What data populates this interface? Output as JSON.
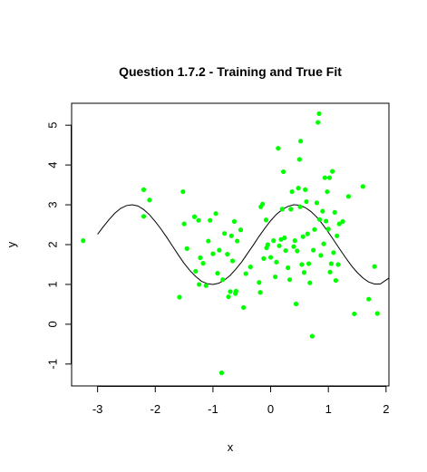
{
  "chart_data": {
    "type": "scatter",
    "title": "Question 1.7.2 - Training and True Fit",
    "xlabel": "x",
    "ylabel": "y",
    "xlim": [
      -3.45,
      2.05
    ],
    "ylim": [
      -1.55,
      5.55
    ],
    "x_ticks": [
      -3,
      -2,
      -1,
      0,
      1,
      2
    ],
    "x_tick_labels": [
      "-3",
      "-2",
      "-1",
      "0",
      "1",
      "2"
    ],
    "y_ticks": [
      -1,
      0,
      1,
      2,
      3,
      4,
      5
    ],
    "y_tick_labels": [
      "-1",
      "0",
      "1",
      "2",
      "3",
      "4",
      "5"
    ],
    "grid": false,
    "legend": "none",
    "series": [
      {
        "type": "scatter",
        "color": "#00ff00",
        "points": [
          [
            -3.25,
            2.1
          ],
          [
            -2.2,
            3.38
          ],
          [
            -2.2,
            2.71
          ],
          [
            -2.1,
            3.12
          ],
          [
            -1.58,
            0.68
          ],
          [
            -1.52,
            3.33
          ],
          [
            -1.5,
            2.52
          ],
          [
            -1.45,
            1.9
          ],
          [
            -1.32,
            2.7
          ],
          [
            -1.3,
            1.33
          ],
          [
            -1.25,
            2.61
          ],
          [
            -1.24,
            1.0
          ],
          [
            -1.22,
            1.67
          ],
          [
            -1.17,
            1.53
          ],
          [
            -1.12,
            0.97
          ],
          [
            -1.08,
            2.09
          ],
          [
            -1.05,
            2.61
          ],
          [
            -1.0,
            1.77
          ],
          [
            -0.95,
            2.78
          ],
          [
            -0.92,
            1.28
          ],
          [
            -0.89,
            1.86
          ],
          [
            -0.85,
            -1.22
          ],
          [
            -0.83,
            1.12
          ],
          [
            -0.8,
            2.28
          ],
          [
            -0.75,
            1.76
          ],
          [
            -0.73,
            0.69
          ],
          [
            -0.7,
            0.82
          ],
          [
            -0.68,
            2.22
          ],
          [
            -0.66,
            1.59
          ],
          [
            -0.63,
            2.58
          ],
          [
            -0.61,
            0.77
          ],
          [
            -0.6,
            0.83
          ],
          [
            -0.58,
            2.09
          ],
          [
            -0.52,
            2.37
          ],
          [
            -0.47,
            0.42
          ],
          [
            -0.43,
            1.27
          ],
          [
            -0.35,
            1.44
          ],
          [
            -0.2,
            1.05
          ],
          [
            -0.18,
            0.8
          ],
          [
            -0.17,
            2.95
          ],
          [
            -0.14,
            3.02
          ],
          [
            -0.12,
            1.65
          ],
          [
            -0.08,
            2.62
          ],
          [
            -0.07,
            1.92
          ],
          [
            -0.05,
            2.0
          ],
          [
            0.0,
            1.68
          ],
          [
            0.05,
            2.1
          ],
          [
            0.08,
            1.19
          ],
          [
            0.1,
            1.56
          ],
          [
            0.13,
            4.42
          ],
          [
            0.15,
            1.97
          ],
          [
            0.18,
            2.13
          ],
          [
            0.2,
            2.89
          ],
          [
            0.22,
            3.83
          ],
          [
            0.24,
            2.17
          ],
          [
            0.26,
            1.85
          ],
          [
            0.3,
            1.42
          ],
          [
            0.33,
            1.12
          ],
          [
            0.35,
            2.89
          ],
          [
            0.37,
            3.33
          ],
          [
            0.4,
            1.95
          ],
          [
            0.42,
            2.1
          ],
          [
            0.44,
            0.51
          ],
          [
            0.46,
            1.84
          ],
          [
            0.48,
            3.42
          ],
          [
            0.5,
            4.14
          ],
          [
            0.51,
            2.95
          ],
          [
            0.52,
            4.6
          ],
          [
            0.54,
            1.5
          ],
          [
            0.56,
            2.2
          ],
          [
            0.58,
            1.3
          ],
          [
            0.6,
            3.38
          ],
          [
            0.62,
            3.08
          ],
          [
            0.64,
            2.27
          ],
          [
            0.66,
            1.52
          ],
          [
            0.68,
            1.04
          ],
          [
            0.72,
            -0.3
          ],
          [
            0.74,
            1.86
          ],
          [
            0.76,
            2.38
          ],
          [
            0.8,
            3.05
          ],
          [
            0.82,
            5.07
          ],
          [
            0.84,
            5.29
          ],
          [
            0.85,
            2.63
          ],
          [
            0.87,
            1.73
          ],
          [
            0.9,
            2.84
          ],
          [
            0.92,
            2.02
          ],
          [
            0.94,
            3.68
          ],
          [
            0.96,
            2.59
          ],
          [
            0.98,
            3.33
          ],
          [
            1.0,
            2.39
          ],
          [
            1.02,
            3.68
          ],
          [
            1.03,
            1.31
          ],
          [
            1.05,
            1.52
          ],
          [
            1.07,
            3.84
          ],
          [
            1.09,
            1.8
          ],
          [
            1.11,
            2.81
          ],
          [
            1.13,
            1.1
          ],
          [
            1.15,
            2.22
          ],
          [
            1.17,
            1.5
          ],
          [
            1.19,
            2.52
          ],
          [
            1.25,
            2.58
          ],
          [
            1.35,
            3.21
          ],
          [
            1.45,
            0.26
          ],
          [
            1.6,
            3.46
          ],
          [
            1.7,
            0.63
          ],
          [
            1.8,
            1.45
          ],
          [
            1.85,
            0.27
          ]
        ]
      },
      {
        "type": "line",
        "color": "#000000",
        "curve": "true fit",
        "x_range": [
          -3.0,
          2.05
        ],
        "points": [
          [
            -3.0,
            2.26
          ],
          [
            -2.9,
            2.45
          ],
          [
            -2.8,
            2.63
          ],
          [
            -2.7,
            2.79
          ],
          [
            -2.6,
            2.91
          ],
          [
            -2.5,
            2.98
          ],
          [
            -2.4,
            3.0
          ],
          [
            -2.3,
            2.97
          ],
          [
            -2.2,
            2.88
          ],
          [
            -2.1,
            2.75
          ],
          [
            -2.0,
            2.58
          ],
          [
            -1.9,
            2.39
          ],
          [
            -1.8,
            2.18
          ],
          [
            -1.7,
            1.96
          ],
          [
            -1.6,
            1.74
          ],
          [
            -1.5,
            1.53
          ],
          [
            -1.4,
            1.35
          ],
          [
            -1.3,
            1.2
          ],
          [
            -1.2,
            1.08
          ],
          [
            -1.1,
            1.02
          ],
          [
            -1.0,
            1.0
          ],
          [
            -0.9,
            1.03
          ],
          [
            -0.8,
            1.11
          ],
          [
            -0.7,
            1.23
          ],
          [
            -0.6,
            1.39
          ],
          [
            -0.5,
            1.57
          ],
          [
            -0.4,
            1.78
          ],
          [
            -0.3,
            1.99
          ],
          [
            -0.2,
            2.21
          ],
          [
            -0.1,
            2.41
          ],
          [
            0.0,
            2.6
          ],
          [
            0.1,
            2.76
          ],
          [
            0.2,
            2.88
          ],
          [
            0.3,
            2.96
          ],
          [
            0.4,
            3.0
          ],
          [
            0.5,
            2.99
          ],
          [
            0.6,
            2.93
          ],
          [
            0.7,
            2.83
          ],
          [
            0.8,
            2.69
          ],
          [
            0.9,
            2.51
          ],
          [
            1.0,
            2.31
          ],
          [
            1.1,
            2.1
          ],
          [
            1.2,
            1.88
          ],
          [
            1.3,
            1.67
          ],
          [
            1.4,
            1.47
          ],
          [
            1.5,
            1.3
          ],
          [
            1.6,
            1.16
          ],
          [
            1.7,
            1.06
          ],
          [
            1.8,
            1.01
          ],
          [
            1.9,
            1.01
          ],
          [
            2.05,
            1.16
          ]
        ]
      }
    ]
  }
}
